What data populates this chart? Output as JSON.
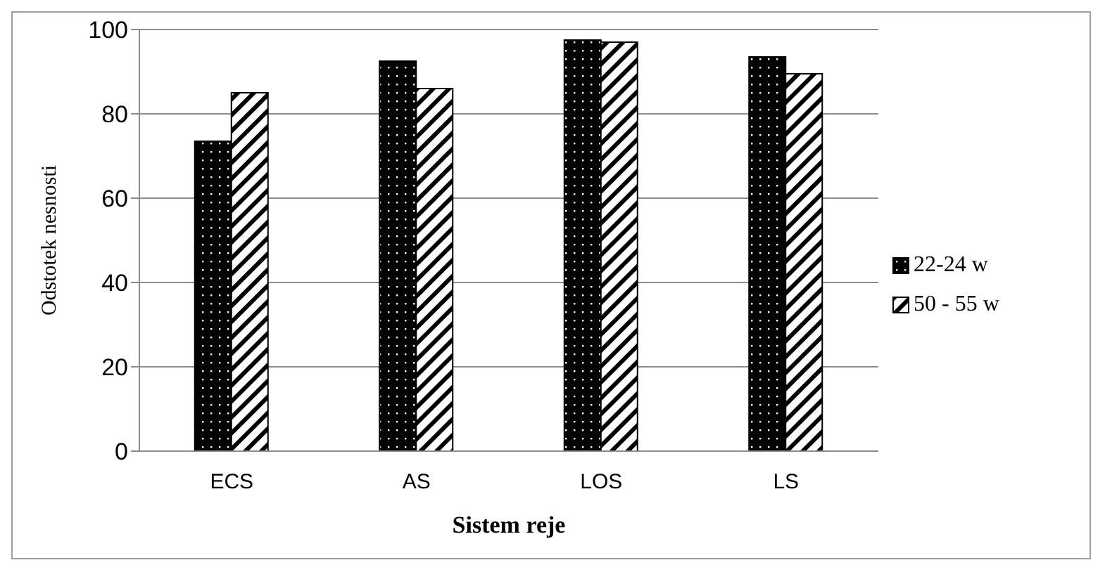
{
  "chart_data": {
    "type": "bar",
    "xlabel": "Sistem reje",
    "ylabel": "Odstotek nesnosti",
    "categories": [
      "ECS",
      "AS",
      "LOS",
      "LS"
    ],
    "series": [
      {
        "name": "22-24 w",
        "color": "#000000",
        "values": [
          73.5,
          92.5,
          97.5,
          93.5
        ]
      },
      {
        "name": "50 - 55 w",
        "color": "#000000",
        "values": [
          85,
          86,
          97,
          89.5
        ]
      }
    ],
    "ylim": [
      0,
      100
    ],
    "yticks": [
      0,
      20,
      40,
      60,
      80,
      100
    ],
    "grid": "y",
    "legend": "right"
  }
}
